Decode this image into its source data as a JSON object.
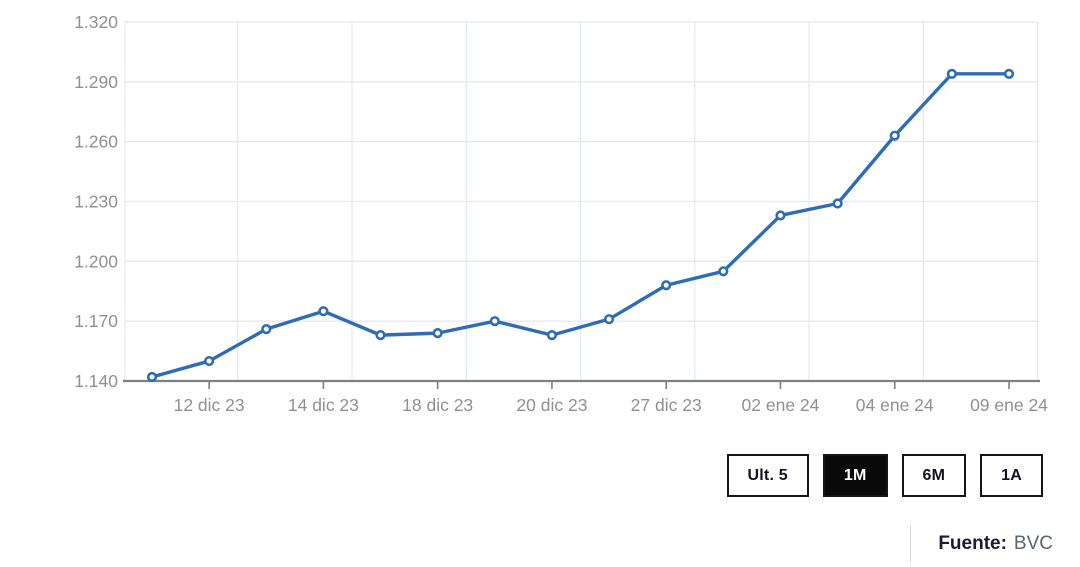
{
  "chart_data": {
    "type": "line",
    "title": "",
    "xlabel": "",
    "ylabel": "",
    "ylim": [
      1140,
      1320
    ],
    "ytick_step": 30,
    "grid": true,
    "legend": "none",
    "ytick_labels": [
      "1.140",
      "1.170",
      "1.200",
      "1.230",
      "1.260",
      "1.290",
      "1.320"
    ],
    "x_labels": [
      "12 dic 23",
      "14 dic 23",
      "18 dic 23",
      "20 dic 23",
      "27 dic 23",
      "02 ene 24",
      "04 ene 24",
      "09 ene 24"
    ],
    "labeled_indices": [
      1,
      3,
      5,
      7,
      9,
      11,
      13,
      15
    ],
    "values": [
      1142,
      1150,
      1166,
      1175,
      1163,
      1164,
      1170,
      1163,
      1171,
      1188,
      1195,
      1223,
      1229,
      1263,
      1294,
      1294
    ],
    "colors": {
      "line": "#2e6db6",
      "marker": "#ffffff",
      "grid": "#e4eaf4",
      "axis": "#7d7f83",
      "label": "#8e9096"
    }
  },
  "toolbar": {
    "active_bg": "#0a0a0a",
    "buttons": [
      {
        "label": "Ult. 5",
        "active": false
      },
      {
        "label": "1M",
        "active": true
      },
      {
        "label": "6M",
        "active": false
      },
      {
        "label": "1A",
        "active": false
      }
    ]
  },
  "footer": {
    "source_label": "Fuente:",
    "source_value": "BVC"
  }
}
